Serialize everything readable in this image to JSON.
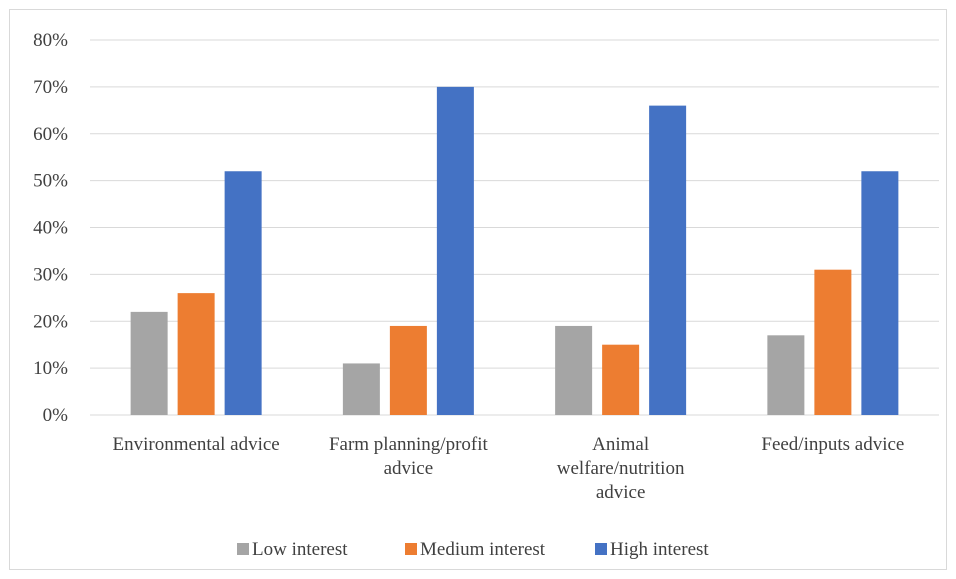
{
  "chart_data": {
    "type": "bar",
    "categories": [
      [
        "Environmental advice"
      ],
      [
        "Farm planning/profit",
        "advice"
      ],
      [
        "Animal",
        "welfare/nutrition",
        "advice"
      ],
      [
        "Feed/inputs advice"
      ]
    ],
    "series": [
      {
        "name": "Low interest",
        "color": "#a5a5a5",
        "values": [
          0.22,
          0.11,
          0.19,
          0.17
        ]
      },
      {
        "name": "Medium interest",
        "color": "#ed7d31",
        "values": [
          0.26,
          0.19,
          0.15,
          0.31
        ]
      },
      {
        "name": "High interest",
        "color": "#4472c4",
        "values": [
          0.52,
          0.7,
          0.66,
          0.52
        ]
      }
    ],
    "y_ticks": [
      "0%",
      "10%",
      "20%",
      "30%",
      "40%",
      "50%",
      "60%",
      "70%",
      "80%"
    ],
    "ylim": [
      0,
      0.8
    ],
    "grid": true,
    "legend_position": "bottom"
  }
}
